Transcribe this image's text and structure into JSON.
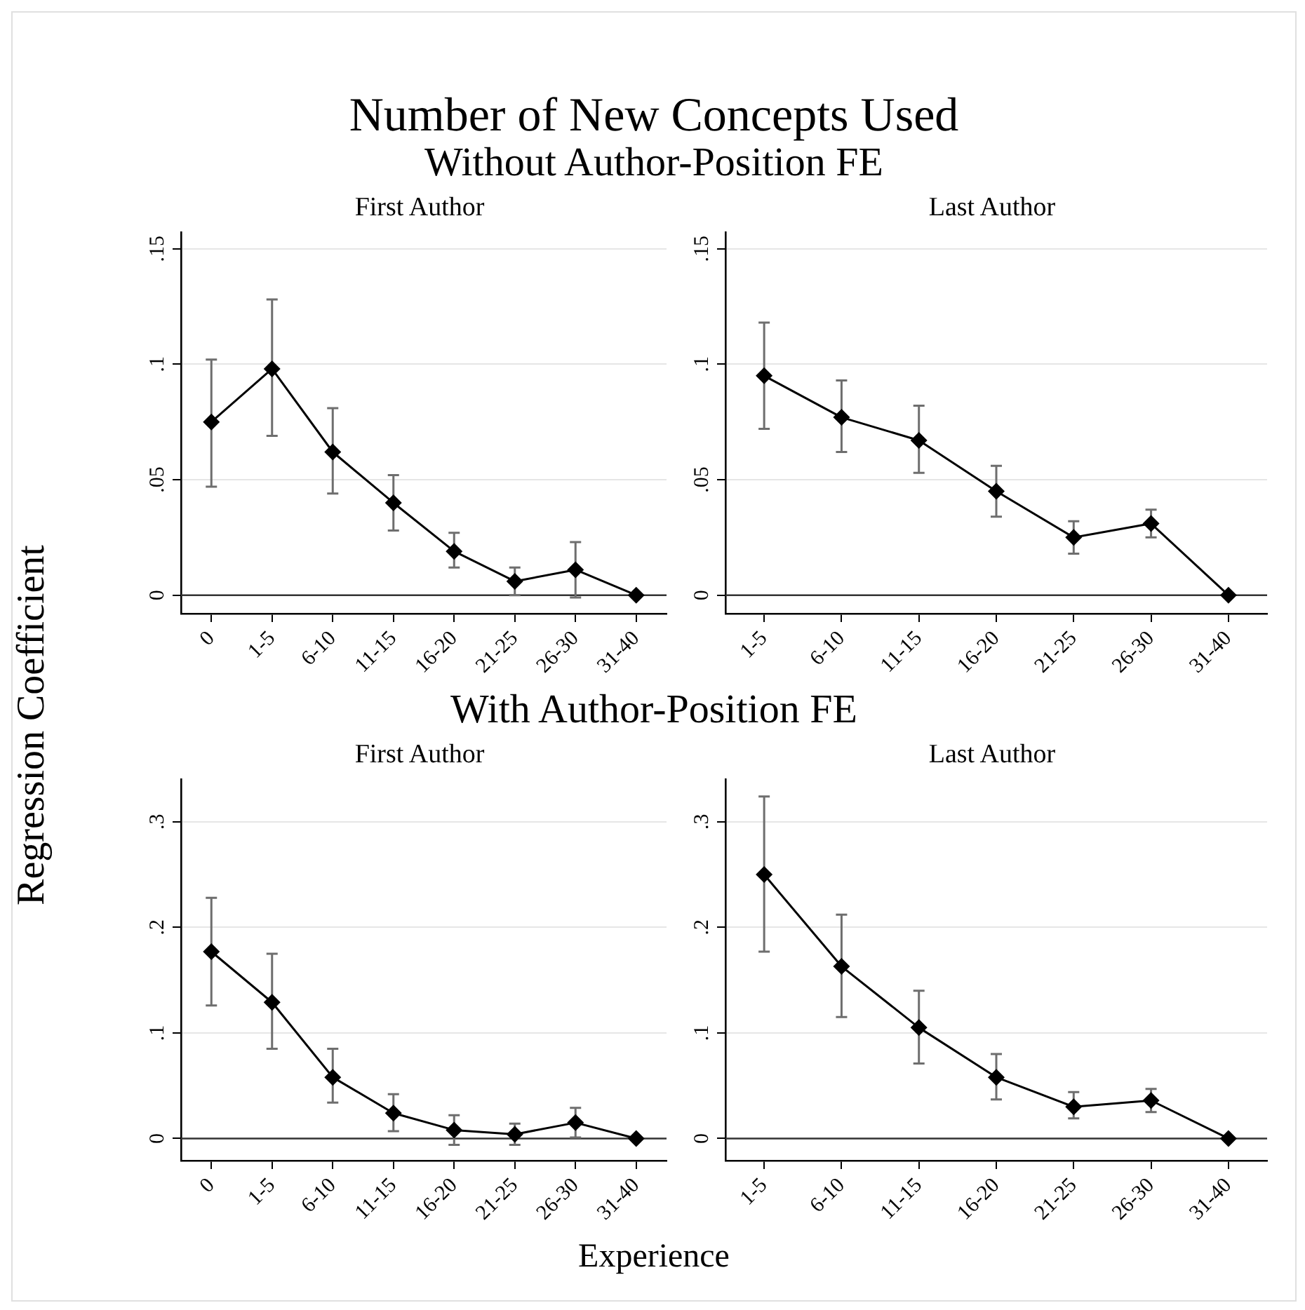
{
  "chart_data": [
    {
      "type": "line",
      "title": "First Author",
      "annotations": [
        "Number of New Concepts Used",
        "Without Author-Position FE"
      ],
      "ylabel": "Regression Coefficient",
      "categories": [
        "0",
        "1-5",
        "6-10",
        "11-15",
        "16-20",
        "21-25",
        "26-30",
        "31-40"
      ],
      "series": [
        {
          "color": "#000000",
          "values": [
            0.075,
            0.098,
            0.062,
            0.04,
            0.019,
            0.006,
            0.011,
            0
          ],
          "errors": [
            [
              0.047,
              0.102
            ],
            [
              0.069,
              0.128
            ],
            [
              0.044,
              0.081
            ],
            [
              0.028,
              0.052
            ],
            [
              0.012,
              0.027
            ],
            [
              0.0,
              0.012
            ],
            [
              -0.001,
              0.023
            ],
            null
          ]
        }
      ],
      "ylim": [
        -0.008,
        0.157
      ],
      "yticks": [
        {
          "value": 0,
          "label": "0"
        },
        {
          "value": 0.05,
          "label": ".05"
        },
        {
          "value": 0.1,
          "label": ".1"
        },
        {
          "value": 0.15,
          "label": ".15"
        }
      ],
      "grid": "y",
      "marker": "diamond",
      "ref_lines": [
        {
          "axis": "y",
          "value": 0,
          "color": "#333333"
        }
      ]
    },
    {
      "type": "line",
      "title": "Last Author",
      "categories": [
        "1-5",
        "6-10",
        "11-15",
        "16-20",
        "21-25",
        "26-30",
        "31-40"
      ],
      "series": [
        {
          "color": "#000000",
          "values": [
            0.095,
            0.077,
            0.067,
            0.045,
            0.025,
            0.031,
            0
          ],
          "errors": [
            [
              0.072,
              0.118
            ],
            [
              0.062,
              0.093
            ],
            [
              0.053,
              0.082
            ],
            [
              0.034,
              0.056
            ],
            [
              0.018,
              0.032
            ],
            [
              0.025,
              0.037
            ],
            null
          ]
        }
      ],
      "ylim": [
        -0.008,
        0.157
      ],
      "yticks": [
        {
          "value": 0,
          "label": "0"
        },
        {
          "value": 0.05,
          "label": ".05"
        },
        {
          "value": 0.1,
          "label": ".1"
        },
        {
          "value": 0.15,
          "label": ".15"
        }
      ],
      "grid": "y",
      "marker": "diamond",
      "ref_lines": [
        {
          "axis": "y",
          "value": 0,
          "color": "#333333"
        }
      ]
    },
    {
      "type": "line",
      "title": "First Author",
      "annotations": [
        "With Author-Position FE"
      ],
      "xlabel": "Experience",
      "categories": [
        "0",
        "1-5",
        "6-10",
        "11-15",
        "16-20",
        "21-25",
        "26-30",
        "31-40"
      ],
      "series": [
        {
          "color": "#000000",
          "values": [
            0.177,
            0.129,
            0.058,
            0.024,
            0.008,
            0.004,
            0.015,
            0
          ],
          "errors": [
            [
              0.126,
              0.228
            ],
            [
              0.085,
              0.175
            ],
            [
              0.034,
              0.085
            ],
            [
              0.007,
              0.042
            ],
            [
              -0.006,
              0.022
            ],
            [
              -0.006,
              0.014
            ],
            [
              0.001,
              0.029
            ],
            null
          ]
        }
      ],
      "ylim": [
        -0.021,
        0.34
      ],
      "yticks": [
        {
          "value": 0,
          "label": "0"
        },
        {
          "value": 0.1,
          "label": ".1"
        },
        {
          "value": 0.2,
          "label": ".2"
        },
        {
          "value": 0.3,
          "label": ".3"
        }
      ],
      "grid": "y",
      "marker": "diamond",
      "ref_lines": [
        {
          "axis": "y",
          "value": 0,
          "color": "#333333"
        }
      ]
    },
    {
      "type": "line",
      "title": "Last Author",
      "categories": [
        "1-5",
        "6-10",
        "11-15",
        "16-20",
        "21-25",
        "26-30",
        "31-40"
      ],
      "series": [
        {
          "color": "#000000",
          "values": [
            0.25,
            0.163,
            0.105,
            0.058,
            0.03,
            0.036,
            0
          ],
          "errors": [
            [
              0.177,
              0.324
            ],
            [
              0.115,
              0.212
            ],
            [
              0.071,
              0.14
            ],
            [
              0.037,
              0.08
            ],
            [
              0.019,
              0.044
            ],
            [
              0.025,
              0.047
            ],
            null
          ]
        }
      ],
      "ylim": [
        -0.021,
        0.34
      ],
      "yticks": [
        {
          "value": 0,
          "label": "0"
        },
        {
          "value": 0.1,
          "label": ".1"
        },
        {
          "value": 0.2,
          "label": ".2"
        },
        {
          "value": 0.3,
          "label": ".3"
        }
      ],
      "grid": "y",
      "marker": "diamond",
      "ref_lines": [
        {
          "axis": "y",
          "value": 0,
          "color": "#333333"
        }
      ]
    }
  ]
}
